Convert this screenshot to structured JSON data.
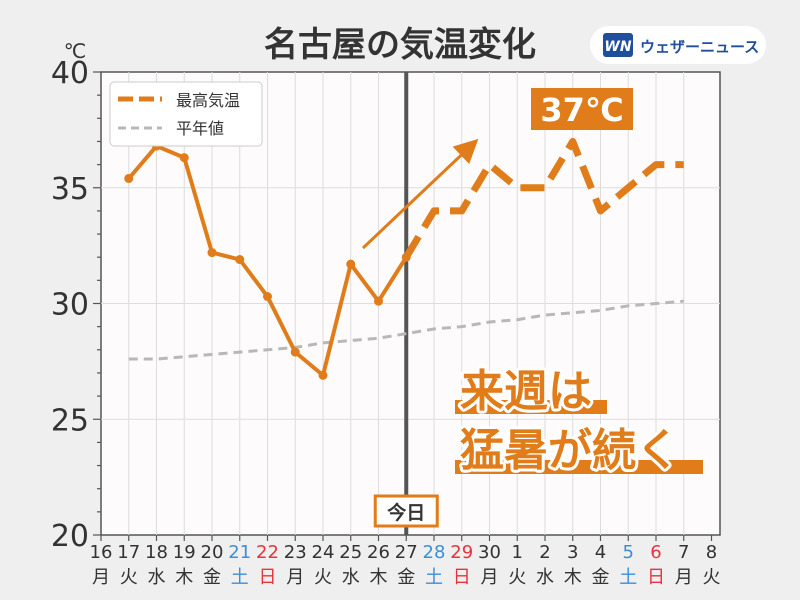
{
  "title": "名古屋の気温変化",
  "brand": {
    "name": "ウェザーニュース",
    "logo_letters": "WN",
    "color": "#1f4e9c"
  },
  "chart_data": {
    "type": "line",
    "ylabel": "℃",
    "ylim": [
      20,
      40
    ],
    "yticks": [
      20,
      25,
      30,
      35,
      40
    ],
    "grid": true,
    "legend_position": "top-left",
    "categories": [
      "16",
      "17",
      "18",
      "19",
      "20",
      "21",
      "22",
      "23",
      "24",
      "25",
      "26",
      "27",
      "28",
      "29",
      "30",
      "1",
      "2",
      "3",
      "4",
      "5",
      "6",
      "7",
      "8"
    ],
    "weekdays": [
      "月",
      "火",
      "水",
      "木",
      "金",
      "土",
      "日",
      "月",
      "火",
      "水",
      "木",
      "金",
      "土",
      "日",
      "月",
      "火",
      "水",
      "木",
      "金",
      "土",
      "日",
      "月",
      "火"
    ],
    "day_colors": [
      "#333333",
      "#333333",
      "#333333",
      "#333333",
      "#333333",
      "#3a8fd8",
      "#e8323c",
      "#333333",
      "#333333",
      "#333333",
      "#333333",
      "#333333",
      "#3a8fd8",
      "#e8323c",
      "#333333",
      "#333333",
      "#333333",
      "#333333",
      "#333333",
      "#3a8fd8",
      "#e8323c",
      "#333333",
      "#333333"
    ],
    "series": [
      {
        "name": "最高気温",
        "color": "#e07c1a",
        "observed_x": [
          "17",
          "18",
          "19",
          "20",
          "21",
          "22",
          "23",
          "24",
          "25",
          "26",
          "27"
        ],
        "observed": [
          35.4,
          36.8,
          36.3,
          32.2,
          31.9,
          30.3,
          27.9,
          26.9,
          31.7,
          30.1,
          32.0
        ],
        "forecast_x": [
          "27",
          "28",
          "29",
          "30",
          "1",
          "2",
          "3",
          "4",
          "5",
          "6",
          "7"
        ],
        "forecast": [
          32,
          34,
          34,
          36,
          35,
          35,
          37,
          34,
          35,
          36,
          36
        ]
      },
      {
        "name": "平年値",
        "color": "#b8b8b8",
        "x": [
          "17",
          "18",
          "19",
          "20",
          "21",
          "22",
          "23",
          "24",
          "25",
          "26",
          "27",
          "28",
          "29",
          "30",
          "1",
          "2",
          "3",
          "4",
          "5",
          "6",
          "7"
        ],
        "values": [
          27.6,
          27.6,
          27.7,
          27.8,
          27.9,
          28.0,
          28.1,
          28.3,
          28.4,
          28.5,
          28.7,
          28.9,
          29.0,
          29.2,
          29.3,
          29.5,
          29.6,
          29.7,
          29.9,
          30.0,
          30.1
        ]
      }
    ],
    "today_marker": {
      "x": "27",
      "label": "今日"
    },
    "annotations": {
      "peak_label": "37℃",
      "comment_line1": "来週は",
      "comment_line2": "猛暑が続く"
    }
  }
}
